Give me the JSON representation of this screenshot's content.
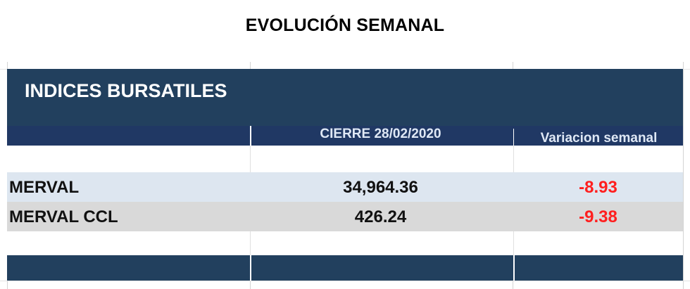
{
  "page_title": "EVOLUCIÓN SEMANAL",
  "table": {
    "title": "INDICES BURSATILES",
    "columns": [
      "",
      "CIERRE 28/02/2020",
      "Variacion semanal"
    ],
    "rows": [
      {
        "name": "MERVAL",
        "close": "34,964.36",
        "change": "-8.93"
      },
      {
        "name": "MERVAL CCL",
        "close": "426.24",
        "change": "-9.38"
      }
    ]
  },
  "colors": {
    "title_band": "#22405e",
    "header_band": "#203864",
    "row_alt_1": "#dde6f0",
    "row_alt_2": "#d9d9d9",
    "negative": "#ff1f1f"
  }
}
